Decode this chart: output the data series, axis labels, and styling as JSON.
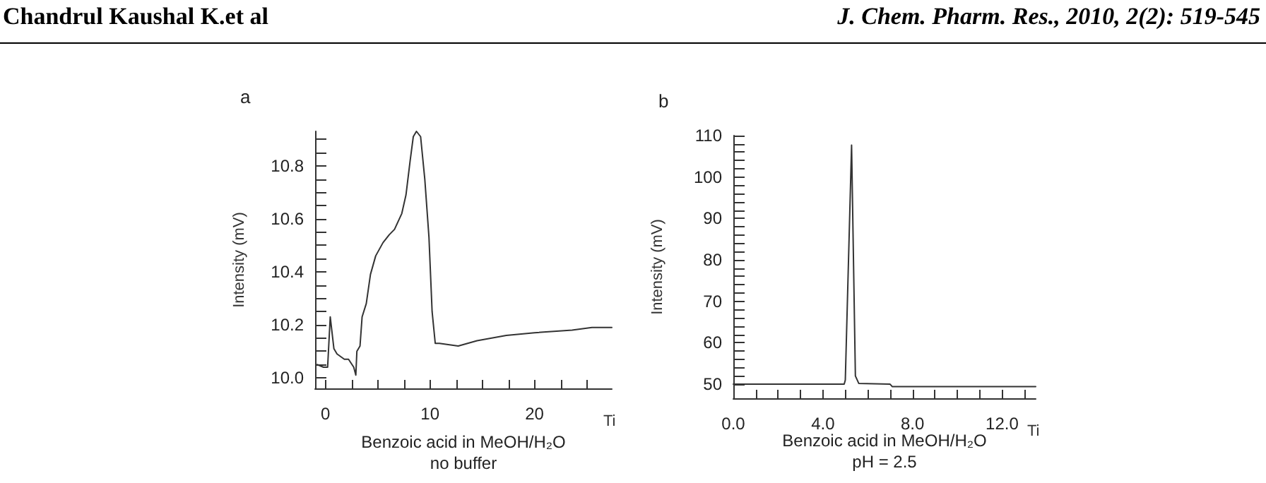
{
  "chart_data": [
    {
      "type": "other",
      "title": "Chandrul Kaushal K.et al",
      "subtitle": "J. Chem. Pharm. Res., 2010, 2(2): 519-545"
    },
    {
      "type": "line",
      "title": "a",
      "xlabel": "Ti",
      "ylabel": "Intensity (mV)",
      "annotations": [
        "Benzoic acid in MeOH/H₂O",
        "no buffer"
      ],
      "grid": false,
      "marker": "none",
      "line_style": "solid",
      "xlim": [
        -1,
        27.4
      ],
      "ylim": [
        9.96,
        10.93
      ],
      "xticks": [
        {
          "value": 0,
          "label": "0"
        },
        {
          "value": 2.5,
          "label": null
        },
        {
          "value": 5,
          "label": null
        },
        {
          "value": 7.5,
          "label": null
        },
        {
          "value": 10,
          "label": "10"
        },
        {
          "value": 12.5,
          "label": null
        },
        {
          "value": 15,
          "label": null
        },
        {
          "value": 17.5,
          "label": null
        },
        {
          "value": 20,
          "label": "20"
        },
        {
          "value": 22.5,
          "label": null
        },
        {
          "value": 25,
          "label": null
        }
      ],
      "yticks": [
        {
          "value": 10.0,
          "label": "10.0"
        },
        {
          "value": 10.05,
          "label": null
        },
        {
          "value": 10.1,
          "label": null
        },
        {
          "value": 10.15,
          "label": null
        },
        {
          "value": 10.2,
          "label": "10.2"
        },
        {
          "value": 10.25,
          "label": null
        },
        {
          "value": 10.3,
          "label": null
        },
        {
          "value": 10.35,
          "label": null
        },
        {
          "value": 10.4,
          "label": "10.4"
        },
        {
          "value": 10.45,
          "label": null
        },
        {
          "value": 10.5,
          "label": null
        },
        {
          "value": 10.55,
          "label": null
        },
        {
          "value": 10.6,
          "label": "10.6"
        },
        {
          "value": 10.65,
          "label": null
        },
        {
          "value": 10.7,
          "label": null
        },
        {
          "value": 10.75,
          "label": null
        },
        {
          "value": 10.8,
          "label": "10.8"
        },
        {
          "value": 10.85,
          "label": null
        },
        {
          "value": 10.9,
          "label": null
        }
      ],
      "series": [
        {
          "color": "#333333",
          "x": [
            -0.8,
            -0.2,
            0.2,
            0.45,
            0.8,
            1.1,
            1.8,
            2.2,
            2.7,
            2.9,
            3.0,
            3.3,
            3.5,
            3.9,
            4.3,
            4.8,
            5.5,
            6.1,
            6.6,
            7.3,
            7.7,
            8.1,
            8.4,
            8.7,
            9.1,
            9.5,
            9.9,
            10.2,
            10.5,
            10.9,
            12.7,
            14.5,
            17.3,
            20,
            23.6,
            25.5,
            27.4
          ],
          "values": [
            10.05,
            10.04,
            10.04,
            10.23,
            10.11,
            10.09,
            10.07,
            10.07,
            10.04,
            10.01,
            10.1,
            10.12,
            10.23,
            10.28,
            10.39,
            10.46,
            10.51,
            10.54,
            10.56,
            10.62,
            10.69,
            10.82,
            10.91,
            10.93,
            10.91,
            10.75,
            10.53,
            10.25,
            10.13,
            10.13,
            10.12,
            10.14,
            10.16,
            10.17,
            10.18,
            10.19,
            10.19
          ]
        }
      ]
    },
    {
      "type": "line",
      "title": "b",
      "xlabel": "Ti",
      "ylabel": "Intensity (mV)",
      "annotations": [
        "Benzoic acid in MeOH/H₂O",
        "pH = 2.5"
      ],
      "grid": false,
      "marker": "none",
      "line_style": "solid",
      "xlim": [
        0,
        13.5
      ],
      "ylim": [
        46.6,
        110
      ],
      "xticks": [
        {
          "value": 0,
          "label": "0.0"
        },
        {
          "value": 1,
          "label": null
        },
        {
          "value": 2,
          "label": null
        },
        {
          "value": 3,
          "label": null
        },
        {
          "value": 4,
          "label": "4.0"
        },
        {
          "value": 5,
          "label": null
        },
        {
          "value": 6,
          "label": null
        },
        {
          "value": 7,
          "label": null
        },
        {
          "value": 8,
          "label": "8.0"
        },
        {
          "value": 9,
          "label": null
        },
        {
          "value": 10,
          "label": null
        },
        {
          "value": 11,
          "label": null
        },
        {
          "value": 12,
          "label": "12.0"
        },
        {
          "value": 13,
          "label": null
        }
      ],
      "yticks": [
        50,
        {
          "value": 52,
          "label": null
        },
        {
          "value": 54,
          "label": null
        },
        {
          "value": 56,
          "label": null
        },
        {
          "value": 58,
          "label": null
        },
        60,
        {
          "value": 62,
          "label": null
        },
        {
          "value": 64,
          "label": null
        },
        {
          "value": 66,
          "label": null
        },
        {
          "value": 68,
          "label": null
        },
        70,
        {
          "value": 72,
          "label": null
        },
        {
          "value": 74,
          "label": null
        },
        {
          "value": 76,
          "label": null
        },
        {
          "value": 78,
          "label": null
        },
        80,
        {
          "value": 82,
          "label": null
        },
        {
          "value": 84,
          "label": null
        },
        {
          "value": 86,
          "label": null
        },
        {
          "value": 88,
          "label": null
        },
        90,
        {
          "value": 92,
          "label": null
        },
        {
          "value": 94,
          "label": null
        },
        {
          "value": 96,
          "label": null
        },
        {
          "value": 98,
          "label": null
        },
        100,
        {
          "value": 102,
          "label": null
        },
        {
          "value": 104,
          "label": null
        },
        {
          "value": 106,
          "label": null
        },
        {
          "value": 108,
          "label": null
        },
        110
      ],
      "series": [
        {
          "color": "#333333",
          "x": [
            0,
            4.95,
            5.0,
            5.28,
            5.45,
            5.6,
            7.0,
            7.1,
            13.5
          ],
          "values": [
            50,
            50,
            51,
            107.7,
            52,
            50.2,
            50,
            49.4,
            49.4
          ]
        }
      ]
    }
  ]
}
